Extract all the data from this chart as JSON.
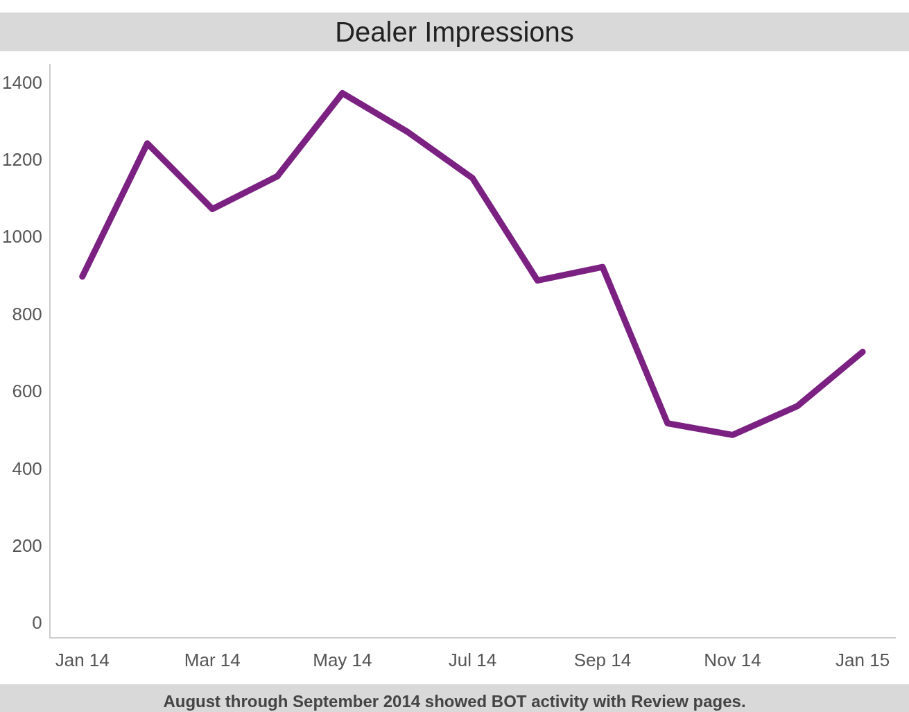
{
  "chart_data": {
    "type": "line",
    "title": "Dealer Impressions",
    "categories": [
      "Jan 14",
      null,
      "Mar 14",
      null,
      "May 14",
      null,
      "Jul 14",
      null,
      "Sep 14",
      null,
      "Nov 14",
      null,
      "Jan 15"
    ],
    "series": [
      {
        "color": "#7b2182",
        "values": [
          900,
          1245,
          1075,
          1160,
          1375,
          1275,
          1155,
          890,
          925,
          520,
          490,
          565,
          705
        ]
      }
    ],
    "ylim": [
      -35,
      1450
    ],
    "yticks": [
      0,
      200,
      400,
      600,
      800,
      1000,
      1200,
      1400
    ],
    "grid": false,
    "legend": false,
    "marker": "none",
    "line_style": "solid",
    "annotations": [
      "August through September 2014 showed BOT activity with Review pages."
    ]
  }
}
